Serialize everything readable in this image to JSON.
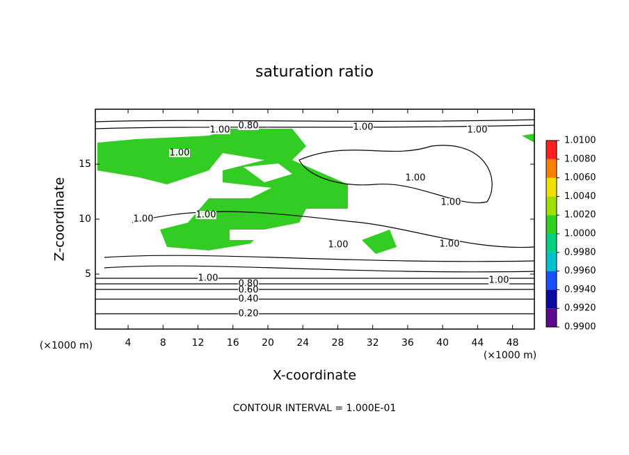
{
  "chart_data": {
    "type": "contour",
    "title": "saturation ratio",
    "xlabel": "X-coordinate",
    "ylabel": "Z-coordinate",
    "x_unit": "(×1000 m)",
    "xlim": [
      0.25,
      50.5
    ],
    "xticks": [
      4,
      8,
      12,
      16,
      20,
      24,
      28,
      32,
      36,
      40,
      44,
      48
    ],
    "ylim": [
      0,
      20
    ],
    "yticks": [
      5,
      10,
      15
    ],
    "colorbar": {
      "lim": [
        0.99,
        1.01
      ],
      "ticks": [
        {
          "value": 0.99,
          "label": "0.9900"
        },
        {
          "value": 0.992,
          "label": "0.9920"
        },
        {
          "value": 0.994,
          "label": "0.9940"
        },
        {
          "value": 0.996,
          "label": "0.9960"
        },
        {
          "value": 0.998,
          "label": "0.9980"
        },
        {
          "value": 1.0,
          "label": "1.0000"
        },
        {
          "value": 1.002,
          "label": "1.0020"
        },
        {
          "value": 1.004,
          "label": "1.0040"
        },
        {
          "value": 1.006,
          "label": "1.0060"
        },
        {
          "value": 1.008,
          "label": "1.0080"
        },
        {
          "value": 1.01,
          "label": "1.0100"
        }
      ],
      "colors": [
        "#5a0a8a",
        "#0a0aa0",
        "#1a50ff",
        "#00c0d0",
        "#00d080",
        "#30d020",
        "#a0e000",
        "#f0e000",
        "#ff8000",
        "#ff2020"
      ]
    },
    "contour_labels": [
      "1.00",
      "0.80",
      "1.00",
      "1.00",
      "1.00",
      "1.00",
      "1.00",
      "1.00",
      "1.00",
      "1.00",
      "1.00",
      "1.00",
      "1.00",
      "0.80",
      "0.60",
      "0.40",
      "0.20"
    ],
    "footer": "CONTOUR INTERVAL = 1.000E-01"
  }
}
